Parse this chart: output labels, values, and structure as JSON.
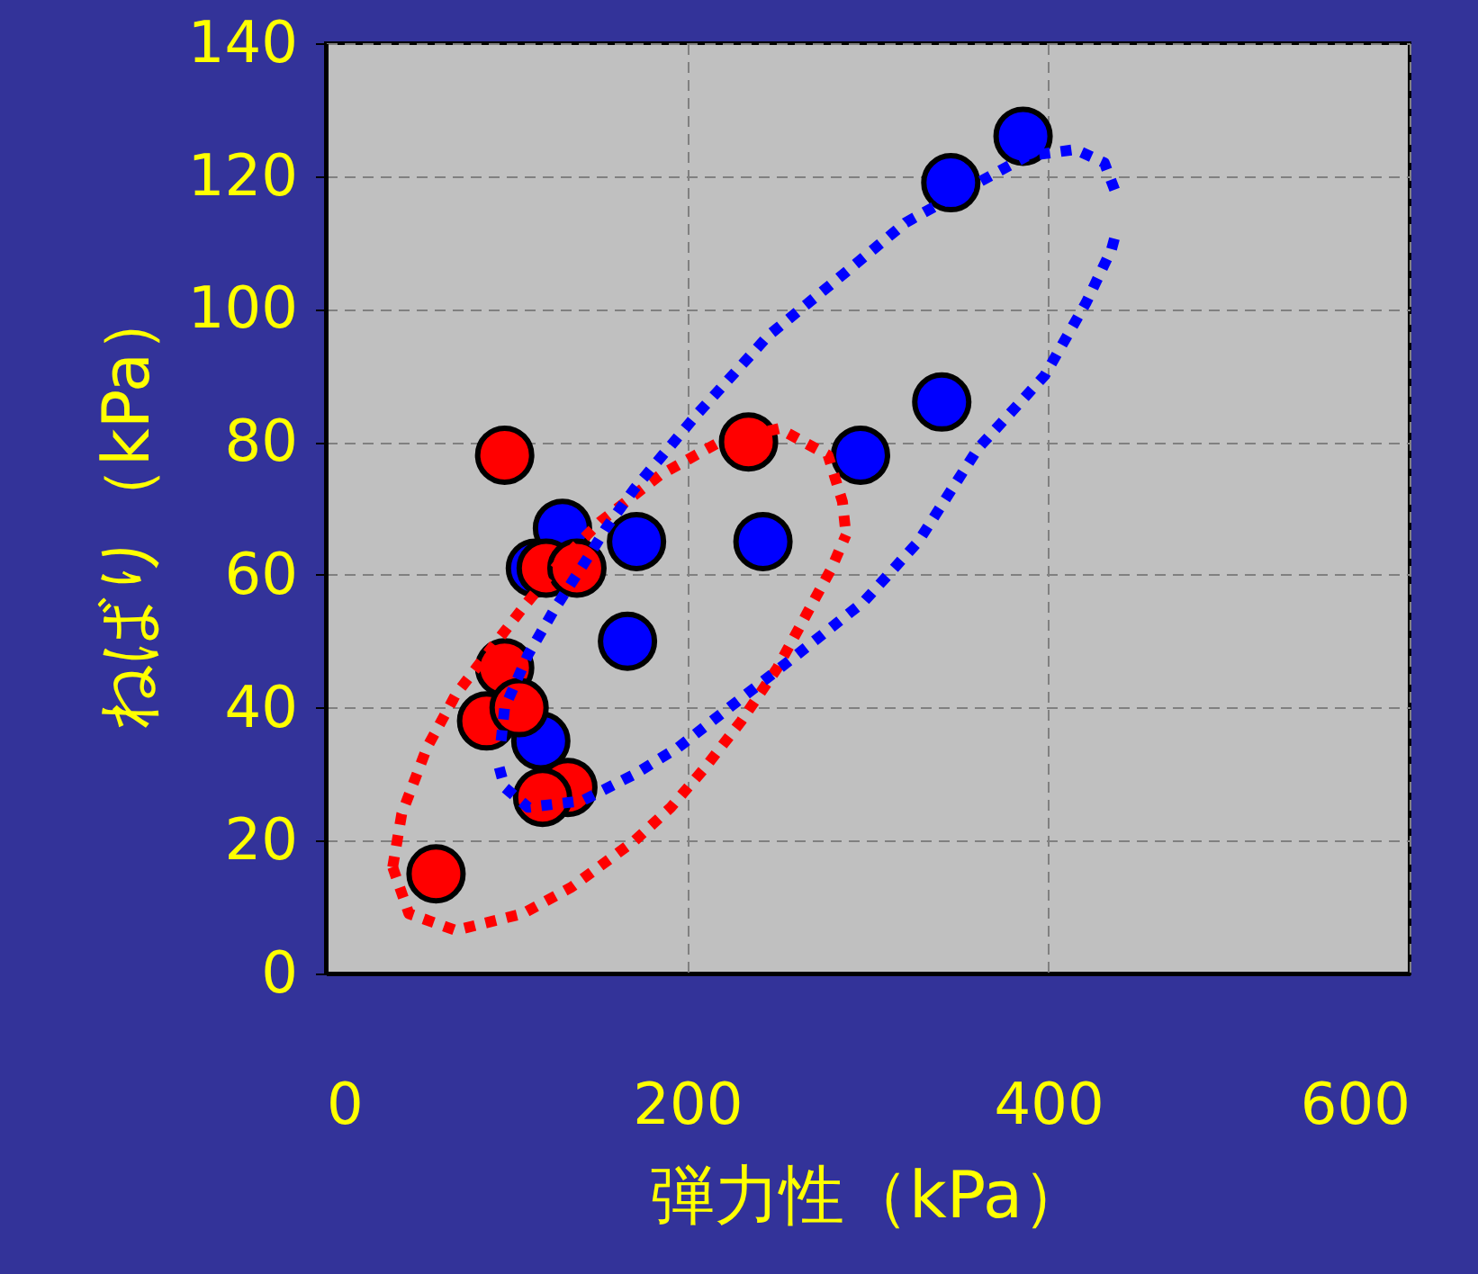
{
  "chart_data": {
    "type": "scatter",
    "xlabel": "弾力性（kPa）",
    "ylabel": "ねばり（kPa）",
    "xlim": [
      0,
      600
    ],
    "xticks": [
      0,
      200,
      400,
      600
    ],
    "ylim": [
      0,
      140
    ],
    "yticks": [
      0,
      20,
      40,
      60,
      80,
      100,
      120,
      140
    ],
    "grid": true,
    "marker": "circle",
    "series": [
      {
        "color": "#0000ff",
        "x": [
          386,
          346,
          341,
          296,
          242,
          172,
          167,
          131,
          116,
          119
        ],
        "values": [
          126,
          119,
          86,
          78,
          65,
          65,
          50,
          67,
          61,
          35
        ]
      },
      {
        "color": "#ff0000",
        "x": [
          99,
          122,
          139,
          234,
          99,
          89,
          107,
          134,
          120,
          61
        ],
        "values": [
          78,
          61,
          61,
          80,
          46,
          38,
          40,
          28,
          26.5,
          15
        ]
      },
      {
        "type": "line",
        "line_style": "dotted",
        "marker": "none",
        "color": "#ff0000",
        "x": [
          37,
          42,
          56,
          72,
          89,
          109,
          130,
          152,
          185,
          218,
          251,
          278,
          286,
          288
        ],
        "values": [
          16,
          24,
          34,
          42,
          48,
          55,
          62,
          68,
          75,
          80,
          82,
          78,
          71,
          66
        ]
      },
      {
        "type": "line",
        "line_style": "dotted",
        "marker": "none",
        "color": "#ff0000",
        "x": [
          37,
          46,
          72,
          109,
          136,
          171,
          191,
          210,
          230,
          250,
          266,
          280,
          288
        ],
        "values": [
          16,
          9,
          6.5,
          9,
          13,
          20,
          25,
          31,
          38,
          46,
          54,
          61,
          66
        ]
      },
      {
        "type": "line",
        "line_style": "dotted",
        "marker": "none",
        "color": "#0000ff",
        "x": [
          97,
          99,
          112,
          127,
          146,
          155,
          171,
          205,
          245,
          281,
          321,
          361,
          388,
          415,
          431,
          438
        ],
        "values": [
          35,
          40,
          48,
          55,
          63,
          67,
          73,
          84,
          96,
          104,
          113,
          119,
          123,
          124,
          122,
          117
        ]
      },
      {
        "type": "line",
        "line_style": "dotted",
        "marker": "none",
        "color": "#0000ff",
        "x": [
          96,
          99,
          112,
          142,
          171,
          195,
          261,
          298,
          328,
          361,
          398,
          421,
          435,
          438
        ],
        "values": [
          31,
          28,
          25,
          26,
          30,
          34,
          48,
          56,
          65,
          79,
          90,
          101,
          109,
          112
        ]
      }
    ]
  }
}
